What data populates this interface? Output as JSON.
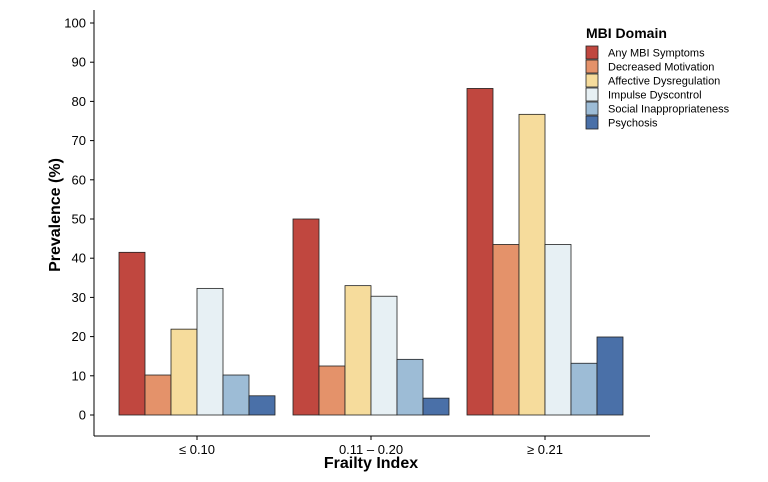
{
  "chart_data": {
    "type": "bar",
    "xlabel": "Frailty Index",
    "ylabel": "Prevalence (%)",
    "ylim": [
      0,
      100
    ],
    "yticks": [
      0,
      10,
      20,
      30,
      40,
      50,
      60,
      70,
      80,
      90,
      100
    ],
    "categories": [
      "≤ 0.10",
      "0.11 – 0.20",
      "≥ 0.21"
    ],
    "legend_title": "MBI Domain",
    "legend_position": "top-right",
    "grid": false,
    "series": [
      {
        "name": "Any MBI Symptoms",
        "color": "#c0473f",
        "values": [
          41.5,
          50.0,
          83.3
        ]
      },
      {
        "name": "Decreased Motivation",
        "color": "#e4926a",
        "values": [
          10.2,
          12.5,
          43.5
        ]
      },
      {
        "name": "Affective Dysregulation",
        "color": "#f6dc9c",
        "values": [
          21.9,
          33.0,
          76.7
        ]
      },
      {
        "name": "Impulse Dyscontrol",
        "color": "#e7f0f4",
        "values": [
          32.3,
          30.3,
          43.5
        ]
      },
      {
        "name": "Social Inappropriateness",
        "color": "#9dbcd6",
        "values": [
          10.2,
          14.2,
          13.2
        ]
      },
      {
        "name": "Psychosis",
        "color": "#4a70a8",
        "values": [
          4.9,
          4.3,
          19.9
        ]
      }
    ]
  }
}
